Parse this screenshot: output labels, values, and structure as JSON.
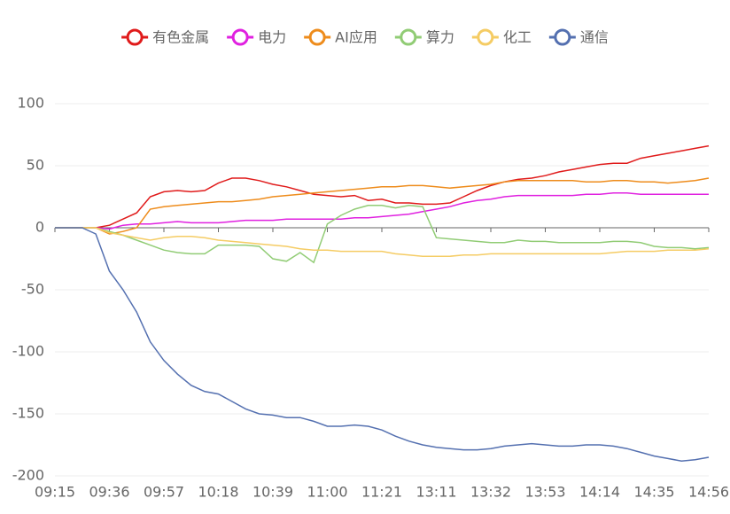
{
  "chart_data": {
    "type": "line",
    "categories": [
      "09:15",
      null,
      null,
      null,
      "09:36",
      null,
      null,
      null,
      "09:57",
      null,
      null,
      null,
      "10:18",
      null,
      null,
      null,
      "10:39",
      null,
      null,
      null,
      "11:00",
      null,
      null,
      null,
      "11:21",
      null,
      null,
      null,
      "13:11",
      null,
      null,
      null,
      "13:32",
      null,
      null,
      null,
      "13:53",
      null,
      null,
      null,
      "14:14",
      null,
      null,
      null,
      "14:35",
      null,
      null,
      null,
      "14:56"
    ],
    "series": [
      {
        "name": "有色金属",
        "color": "#e01b1b",
        "values": [
          0,
          0,
          0,
          0,
          2,
          7,
          12,
          25,
          29,
          30,
          29,
          30,
          36,
          40,
          40,
          38,
          35,
          33,
          30,
          27,
          26,
          25,
          26,
          22,
          23,
          20,
          20,
          19,
          19,
          20,
          25,
          30,
          34,
          37,
          39,
          40,
          42,
          45,
          47,
          49,
          51,
          52,
          52,
          56,
          58,
          60,
          62,
          64,
          66
        ]
      },
      {
        "name": "电力",
        "color": "#e021e0",
        "values": [
          0,
          0,
          0,
          0,
          -1,
          2,
          3,
          3,
          4,
          5,
          4,
          4,
          4,
          5,
          6,
          6,
          6,
          7,
          7,
          7,
          7,
          7,
          8,
          8,
          9,
          10,
          11,
          13,
          15,
          17,
          20,
          22,
          23,
          25,
          26,
          26,
          26,
          26,
          26,
          27,
          27,
          28,
          28,
          27,
          27,
          27,
          27,
          27,
          27
        ]
      },
      {
        "name": "AI应用",
        "color": "#ee8c1c",
        "values": [
          0,
          0,
          0,
          0,
          -5,
          -3,
          0,
          15,
          17,
          18,
          19,
          20,
          21,
          21,
          22,
          23,
          25,
          26,
          27,
          28,
          29,
          30,
          31,
          32,
          33,
          33,
          34,
          34,
          33,
          32,
          33,
          34,
          35,
          37,
          38,
          38,
          38,
          38,
          38,
          37,
          37,
          38,
          38,
          37,
          37,
          36,
          37,
          38,
          40
        ]
      },
      {
        "name": "算力",
        "color": "#91cc75",
        "values": [
          0,
          0,
          0,
          0,
          -3,
          -6,
          -10,
          -14,
          -18,
          -20,
          -21,
          -21,
          -14,
          -14,
          -14,
          -15,
          -25,
          -27,
          -20,
          -28,
          3,
          10,
          15,
          18,
          18,
          16,
          18,
          17,
          -8,
          -9,
          -10,
          -11,
          -12,
          -12,
          -10,
          -11,
          -11,
          -12,
          -12,
          -12,
          -12,
          -11,
          -11,
          -12,
          -15,
          -16,
          -16,
          -17,
          -16
        ]
      },
      {
        "name": "化工",
        "color": "#f5cc64",
        "values": [
          0,
          0,
          0,
          0,
          -4,
          -6,
          -8,
          -10,
          -8,
          -7,
          -7,
          -8,
          -10,
          -11,
          -12,
          -13,
          -14,
          -15,
          -17,
          -18,
          -18,
          -19,
          -19,
          -19,
          -19,
          -21,
          -22,
          -23,
          -23,
          -23,
          -22,
          -22,
          -21,
          -21,
          -21,
          -21,
          -21,
          -21,
          -21,
          -21,
          -21,
          -20,
          -19,
          -19,
          -19,
          -18,
          -18,
          -18,
          -17
        ]
      },
      {
        "name": "通信",
        "color": "#5470b0",
        "values": [
          0,
          0,
          0,
          -5,
          -35,
          -50,
          -68,
          -92,
          -107,
          -118,
          -127,
          -132,
          -134,
          -140,
          -146,
          -150,
          -151,
          -153,
          -153,
          -156,
          -160,
          -160,
          -159,
          -160,
          -163,
          -168,
          -172,
          -175,
          -177,
          -178,
          -179,
          -179,
          -178,
          -176,
          -175,
          -174,
          -175,
          -176,
          -176,
          -175,
          -175,
          -176,
          -178,
          -181,
          -184,
          -186,
          -188,
          -187,
          -185
        ]
      }
    ],
    "ylim": [
      -200,
      100
    ],
    "yticks": [
      -200,
      -150,
      -100,
      -50,
      0,
      50,
      100
    ],
    "grid": true
  }
}
